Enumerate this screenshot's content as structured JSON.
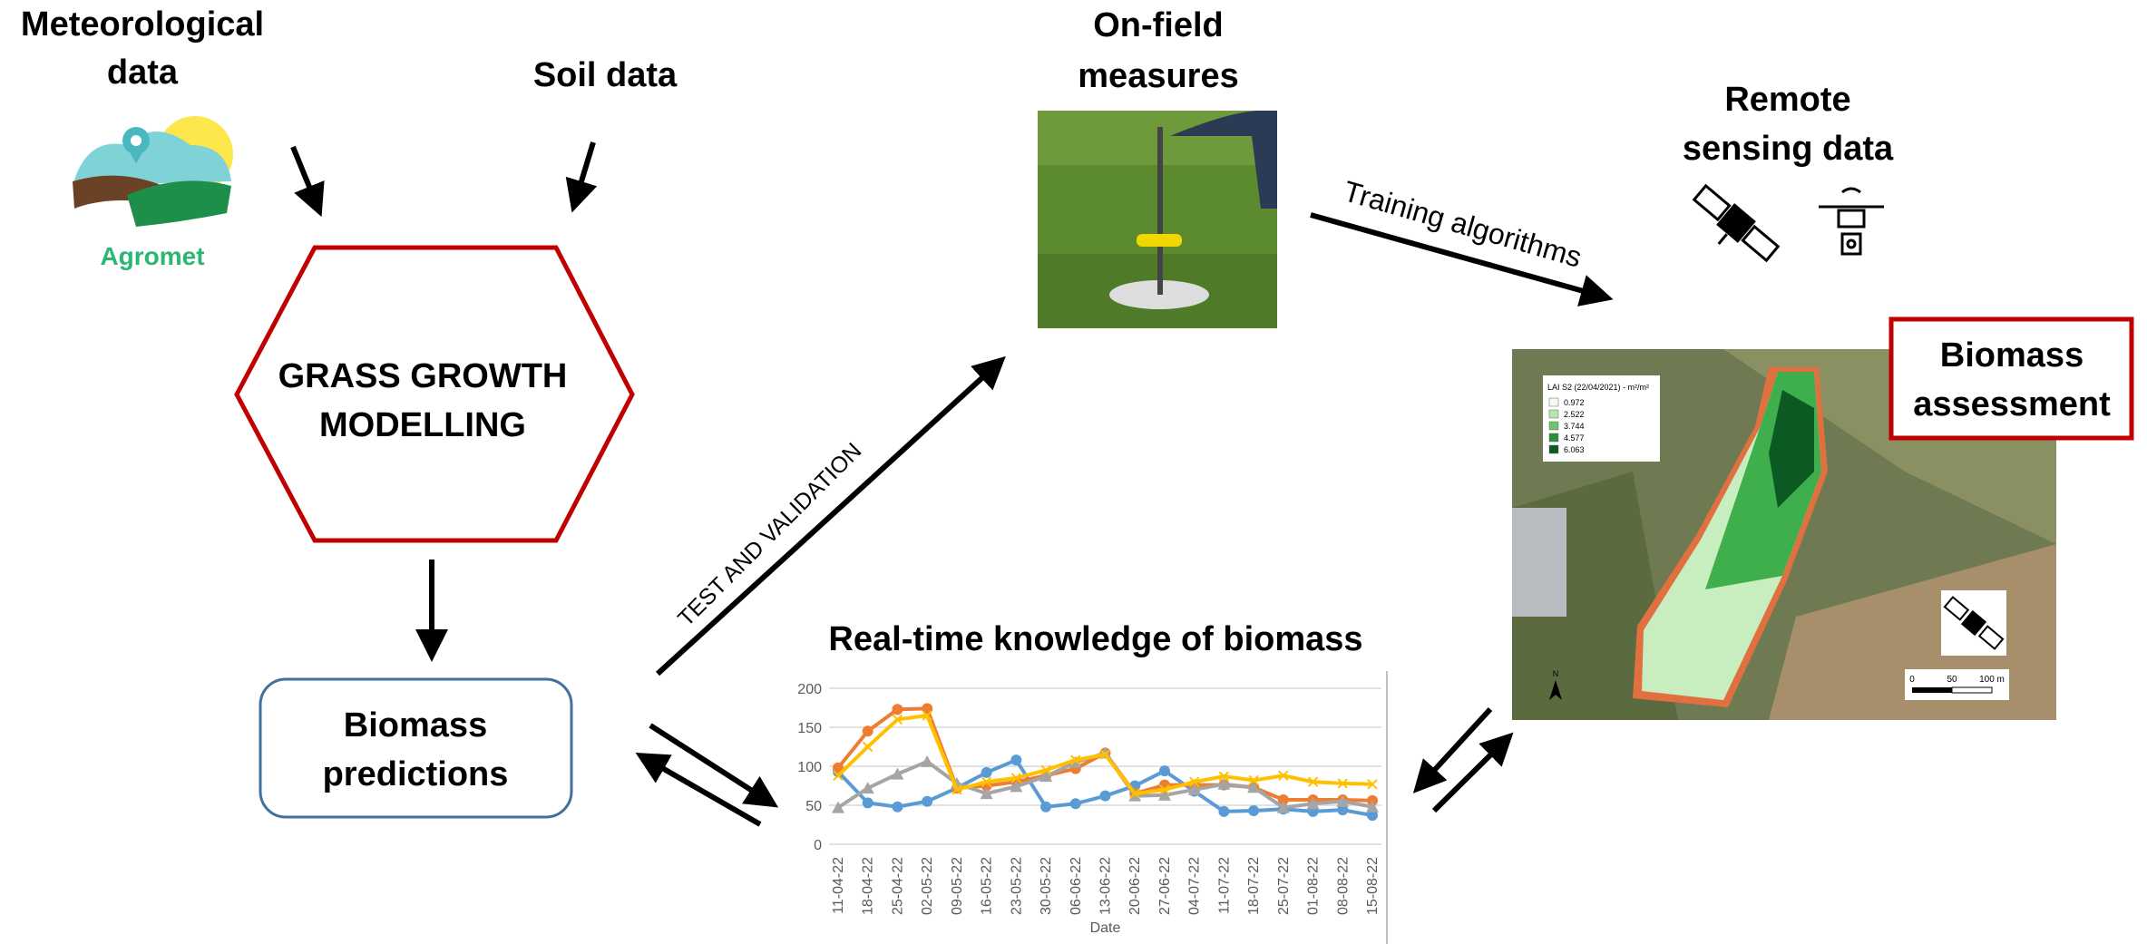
{
  "labels": {
    "meteorological": [
      "Meteorological",
      "data"
    ],
    "soil": "Soil data",
    "on_field": [
      "On-field",
      "measures"
    ],
    "remote": [
      "Remote",
      "sensing data"
    ],
    "training": "Training algorithms",
    "test": "TEST AND VALIDATION",
    "model": [
      "GRASS GROWTH",
      "MODELLING"
    ],
    "predictions": [
      "Biomass",
      "predictions"
    ],
    "realtime": "Real-time knowledge of biomass",
    "assessment": [
      "Biomass",
      "assessment"
    ],
    "logo": "Agromet"
  },
  "map": {
    "legend_title": "LAI S2 (22/04/2021) - m²/m²",
    "legend_items": [
      "0.972",
      "2.522",
      "3.744",
      "4.577",
      "6.063"
    ],
    "scale": [
      "0",
      "50",
      "100 m"
    ],
    "north": "N"
  },
  "chart_data": {
    "type": "line",
    "x_label": "Date",
    "categories": [
      "11-04-22",
      "18-04-22",
      "25-04-22",
      "02-05-22",
      "09-05-22",
      "16-05-22",
      "23-05-22",
      "30-05-22",
      "06-06-22",
      "13-06-22",
      "20-06-22",
      "27-06-22",
      "04-07-22",
      "11-07-22",
      "18-07-22",
      "25-07-22",
      "01-08-22",
      "08-08-22",
      "15-08-22"
    ],
    "series": [
      {
        "color": "#5b9bd5",
        "marker": "circle",
        "values": [
          93,
          53,
          48,
          55,
          72,
          92,
          108,
          48,
          52,
          62,
          75,
          94,
          68,
          42,
          43,
          45,
          42,
          44,
          37
        ]
      },
      {
        "color": "#ed7d31",
        "marker": "circle",
        "values": [
          98,
          145,
          173,
          174,
          72,
          75,
          80,
          88,
          97,
          117,
          65,
          76,
          76,
          76,
          73,
          57,
          57,
          57,
          56
        ]
      },
      {
        "color": "#a5a5a5",
        "marker": "triangle",
        "values": [
          47,
          72,
          90,
          106,
          78,
          65,
          74,
          87,
          105,
          117,
          62,
          63,
          70,
          77,
          73,
          47,
          52,
          55,
          48
        ]
      },
      {
        "color": "#ffc000",
        "marker": "x",
        "values": [
          88,
          125,
          160,
          165,
          70,
          80,
          85,
          95,
          108,
          115,
          65,
          70,
          80,
          87,
          82,
          88,
          80,
          78,
          77
        ]
      }
    ],
    "ylim": [
      0,
      200
    ],
    "yticks": [
      0,
      50,
      100,
      150,
      200
    ],
    "grid": true
  }
}
